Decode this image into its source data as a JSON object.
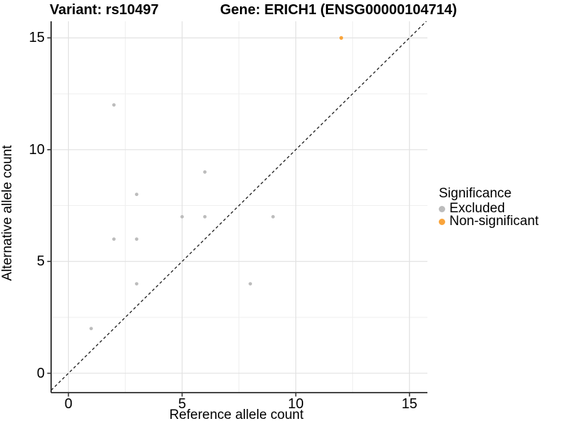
{
  "titles": {
    "variant": "Variant: rs10497",
    "gene": "Gene: ERICH1 (ENSG00000104714)"
  },
  "chart_data": {
    "type": "scatter",
    "xlabel": "Reference allele count",
    "ylabel": "Alternative allele count",
    "xlim": [
      -0.75,
      15.75
    ],
    "ylim": [
      -0.75,
      15.75
    ],
    "x_ticks": [
      0,
      5,
      10,
      15
    ],
    "y_ticks": [
      0,
      5,
      10,
      15
    ],
    "x_minor": [
      2.5,
      7.5,
      12.5
    ],
    "y_minor": [
      2.5,
      7.5,
      12.5
    ],
    "grid": true,
    "reference_line": {
      "style": "dashed",
      "equation": "y = x",
      "color": "#1a1a1a"
    },
    "legend": {
      "title": "Significance",
      "position": "right"
    },
    "series": [
      {
        "name": "Excluded",
        "color": "#bcbcbc",
        "points": [
          [
            1,
            2
          ],
          [
            2,
            6
          ],
          [
            2,
            12
          ],
          [
            3,
            4
          ],
          [
            3,
            6
          ],
          [
            3,
            8
          ],
          [
            5,
            7
          ],
          [
            6,
            7
          ],
          [
            6,
            9
          ],
          [
            8,
            4
          ],
          [
            9,
            7
          ]
        ]
      },
      {
        "name": "Non-significant",
        "color": "#f9a43b",
        "points": [
          [
            12,
            15
          ]
        ]
      }
    ],
    "colors": {
      "grid_major": "#e2e2e2",
      "grid_minor": "#efefef",
      "axis_line": "#2b2b2b",
      "tick": "#333333"
    }
  }
}
